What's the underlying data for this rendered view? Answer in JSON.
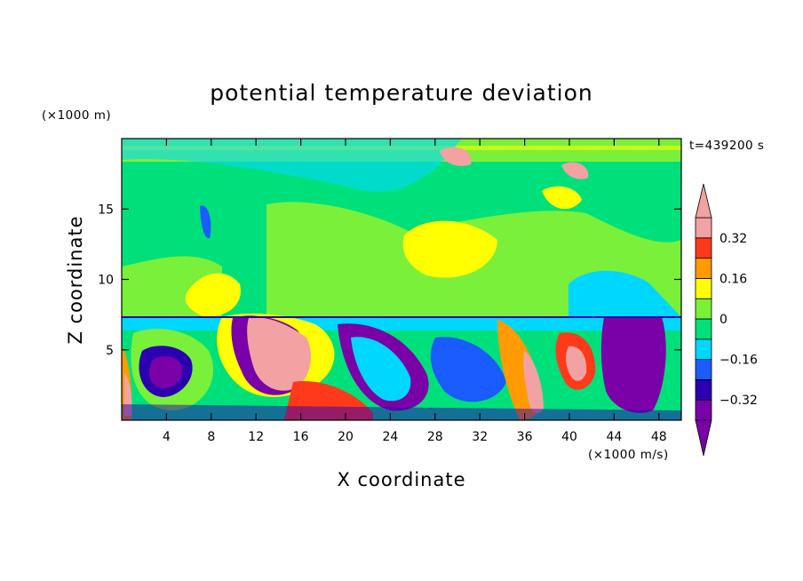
{
  "chart_data": {
    "type": "heatmap",
    "title": "potential temperature deviation",
    "xlabel": "X coordinate",
    "ylabel": "Z coordinate",
    "x_unit": "(×1000 m/s)",
    "y_unit": "(×1000 m)",
    "time_label": "t=439200 s",
    "xlim": [
      0,
      50
    ],
    "ylim": [
      0,
      20
    ],
    "x_ticks": [
      4,
      8,
      12,
      16,
      20,
      24,
      28,
      32,
      36,
      40,
      44,
      48
    ],
    "y_ticks": [
      5,
      10,
      15
    ],
    "colorbar": {
      "levels": [
        -0.4,
        -0.32,
        -0.24,
        -0.16,
        -0.08,
        0,
        0.08,
        0.16,
        0.24,
        0.32,
        0.4
      ],
      "tick_labels": [
        "−0.32",
        "−0.16",
        "0",
        "0.16",
        "0.32"
      ],
      "tick_values": [
        -0.32,
        -0.16,
        0,
        0.16,
        0.32
      ],
      "colors": [
        "#7a00a8",
        "#2a00b0",
        "#1a5cff",
        "#00d7ff",
        "#00e07a",
        "#7af03a",
        "#ffff00",
        "#ff9a00",
        "#ff3a1a",
        "#f2a2a2"
      ],
      "under_color": "#7a00a8",
      "over_color": "#f2a2a2"
    }
  }
}
